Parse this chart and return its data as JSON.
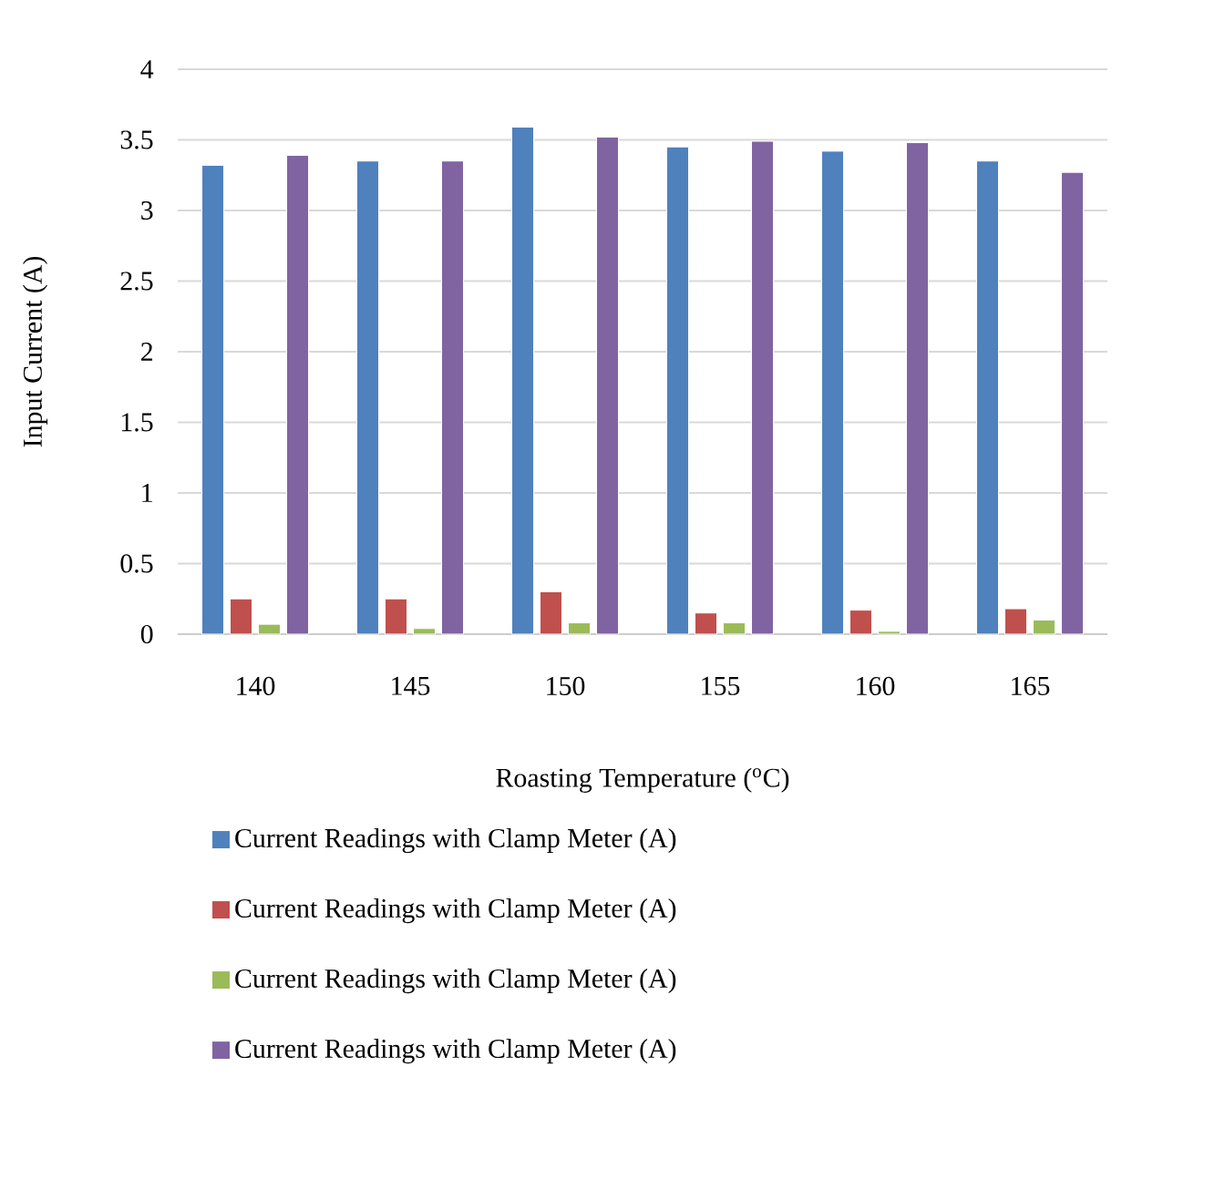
{
  "chart_data": {
    "type": "bar",
    "xlabel": "Roasting Temperature ($^{o}$C)",
    "ylabel": "Input Current (A)",
    "categories": [
      "140",
      "145",
      "150",
      "155",
      "160",
      "165"
    ],
    "series": [
      {
        "name": "Current Readings with Clamp Meter (A)",
        "color": "#4f81bd",
        "values": [
          3.32,
          3.35,
          3.59,
          3.45,
          3.42,
          3.35
        ]
      },
      {
        "name": "Current Readings with Clamp Meter (A)",
        "color": "#c0504d",
        "values": [
          0.25,
          0.25,
          0.3,
          0.15,
          0.17,
          0.18
        ]
      },
      {
        "name": "Current Readings with Clamp Meter (A)",
        "color": "#9bbb59",
        "values": [
          0.07,
          0.04,
          0.08,
          0.08,
          0.02,
          0.1
        ]
      },
      {
        "name": "Current Readings with Clamp Meter (A)",
        "color": "#8064a2",
        "values": [
          3.39,
          3.35,
          3.52,
          3.49,
          3.48,
          3.27
        ]
      }
    ],
    "ylim": [
      0,
      4
    ],
    "yticks": [
      0,
      0.5,
      1,
      1.5,
      2,
      2.5,
      3,
      3.5,
      4
    ],
    "grid": "y",
    "legend": "bottom"
  }
}
